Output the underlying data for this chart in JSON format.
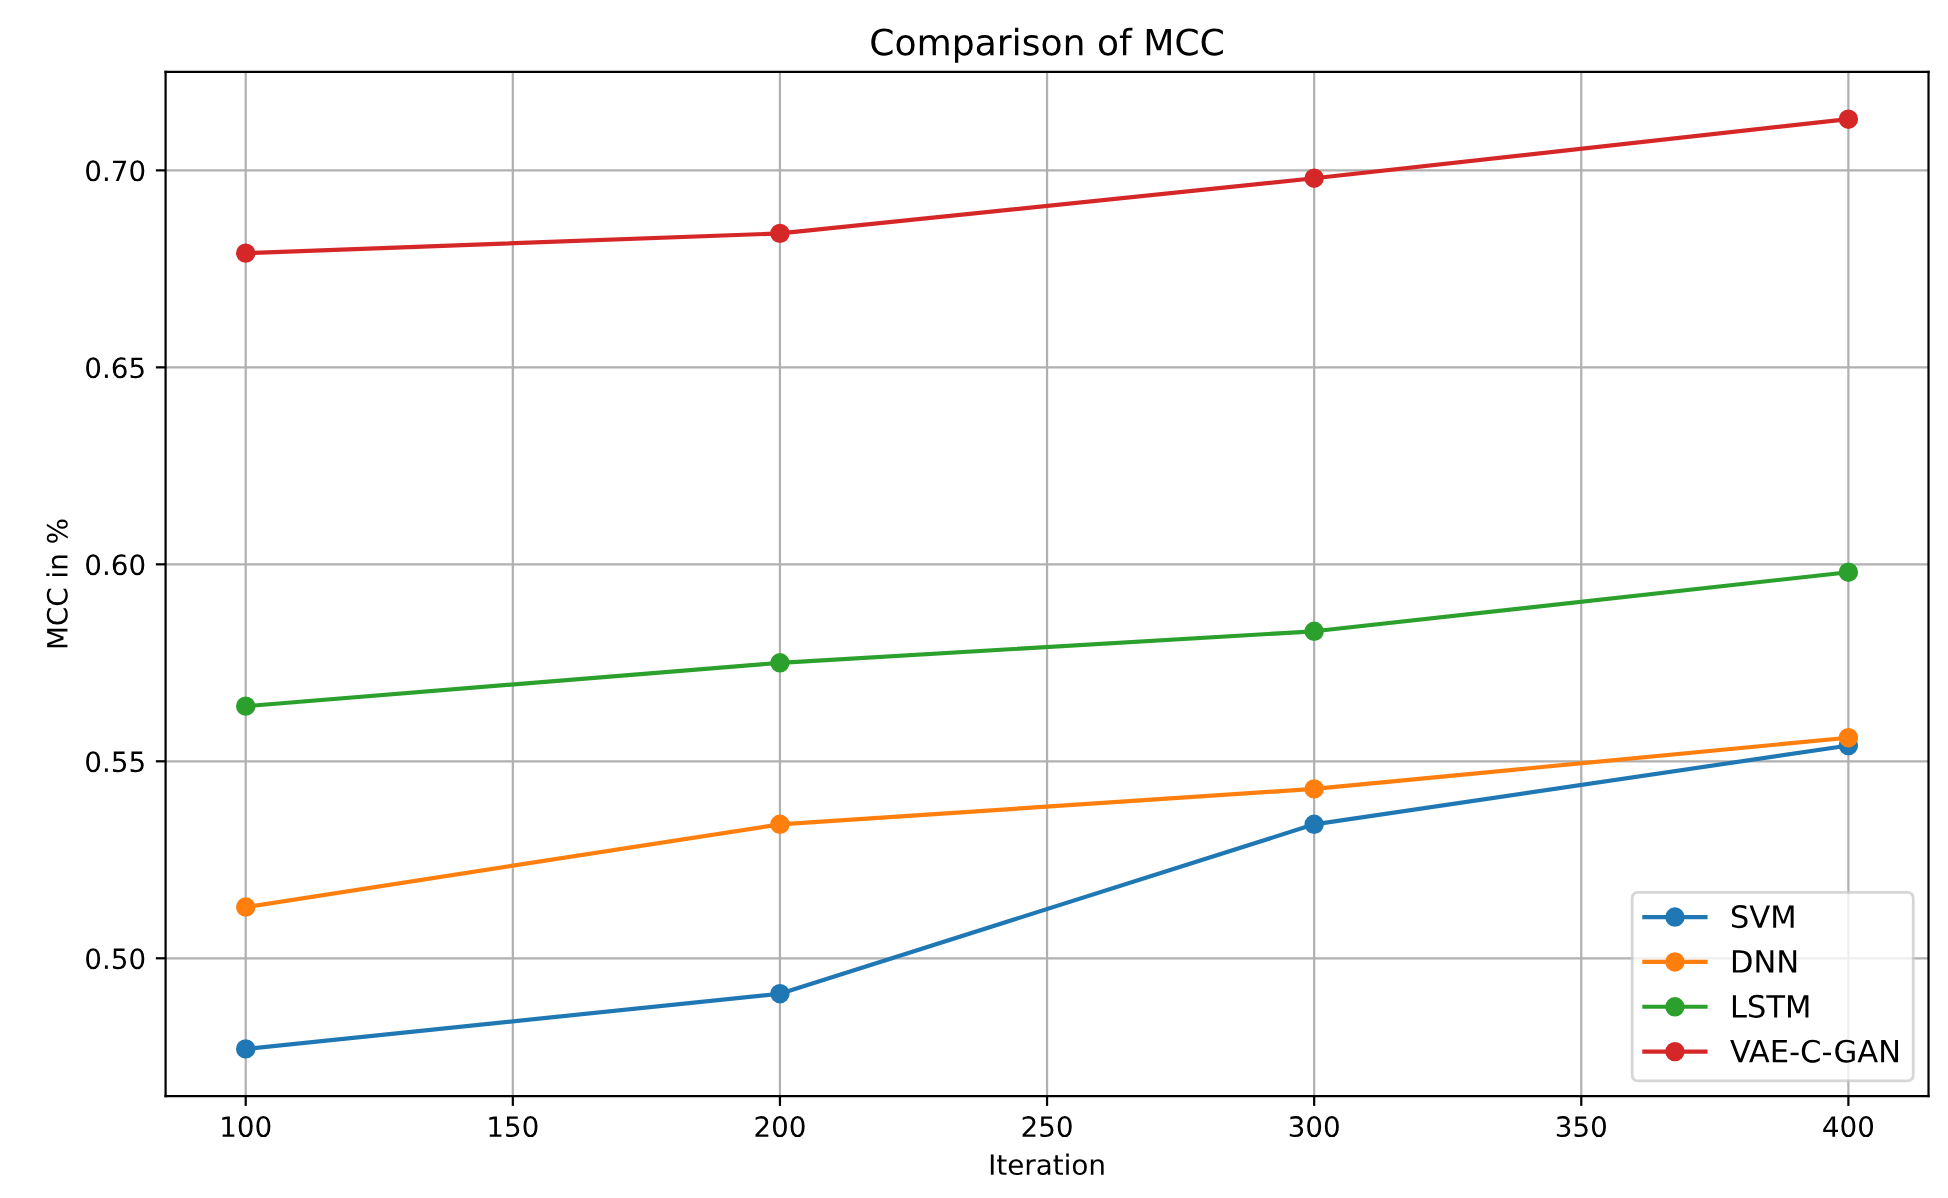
{
  "chart_data": {
    "type": "line",
    "title": "Comparison of MCC",
    "xlabel": "Iteration",
    "ylabel": "MCC in %",
    "x": [
      100,
      200,
      300,
      400
    ],
    "series": [
      {
        "name": "SVM",
        "color": "#1f77b4",
        "values": [
          0.477,
          0.491,
          0.534,
          0.554
        ]
      },
      {
        "name": "DNN",
        "color": "#ff7f0e",
        "values": [
          0.513,
          0.534,
          0.543,
          0.556
        ]
      },
      {
        "name": "LSTM",
        "color": "#2ca02c",
        "values": [
          0.564,
          0.575,
          0.583,
          0.598
        ]
      },
      {
        "name": "VAE-C-GAN",
        "color": "#d62728",
        "values": [
          0.679,
          0.684,
          0.698,
          0.713
        ]
      }
    ],
    "xlim": [
      85,
      415
    ],
    "ylim": [
      0.465,
      0.725
    ],
    "xticks": [
      100,
      150,
      200,
      250,
      300,
      350,
      400
    ],
    "yticks": [
      {
        "value": 0.5,
        "label": "0.50"
      },
      {
        "value": 0.55,
        "label": "0.55"
      },
      {
        "value": 0.6,
        "label": "0.60"
      },
      {
        "value": 0.65,
        "label": "0.65"
      },
      {
        "value": 0.7,
        "label": "0.70"
      }
    ],
    "grid": true,
    "legend": "lower right",
    "marker": "circle",
    "line_style": "solid"
  }
}
